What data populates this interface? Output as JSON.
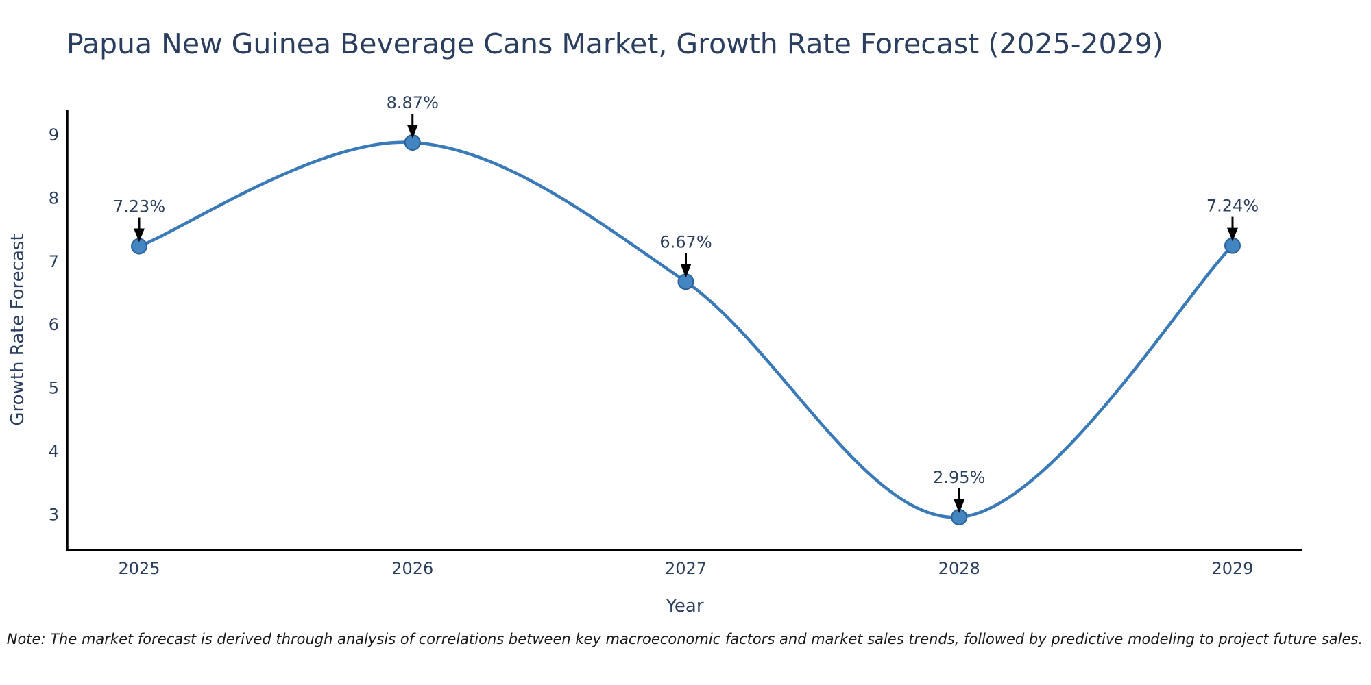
{
  "figure": {
    "title": "Papua New Guinea Beverage Cans Market, Growth Rate Forecast (2025-2029)"
  },
  "footnote": {
    "text": "Note: The market forecast is derived through analysis of correlations between key macroeconomic factors and market sales trends, followed by predictive modeling to project future sales."
  },
  "colors": {
    "line": "#3a7ab8",
    "marker_fill": "#4385c0",
    "marker_edge": "#2a6099",
    "axis_line": "#000000",
    "title_text": "#2a3f5f",
    "axis_text": "#2a3f5f",
    "annotation_text": "#2a3f5f",
    "arrow": "#000000",
    "note_text": "#1a1a1a",
    "background": "#ffffff"
  },
  "chart_data": {
    "type": "line",
    "title": "Papua New Guinea Beverage Cans Market, Growth Rate Forecast (2025-2029)",
    "categories": [
      "2025",
      "2026",
      "2027",
      "2028",
      "2029"
    ],
    "values": [
      7.23,
      8.87,
      6.67,
      2.95,
      7.24
    ],
    "point_labels": [
      "7.23%",
      "8.87%",
      "6.67%",
      "2.95%",
      "7.24%"
    ],
    "series": [
      {
        "name": "Growth Rate Forecast",
        "values": [
          7.23,
          8.87,
          6.67,
          2.95,
          7.24
        ]
      }
    ],
    "xlabel": "Year",
    "ylabel": "Growth Rate Forecast",
    "yticks": [
      3,
      4,
      5,
      6,
      7,
      8,
      9
    ],
    "ytick_labels": [
      "3",
      "4",
      "5",
      "6",
      "7",
      "8",
      "9"
    ],
    "ylim": [
      2.4,
      9.4
    ],
    "grid": false,
    "legend": "none",
    "line_shape": "spline",
    "markers": true,
    "annotations": "value labels with black arrows pointing at each data point"
  }
}
